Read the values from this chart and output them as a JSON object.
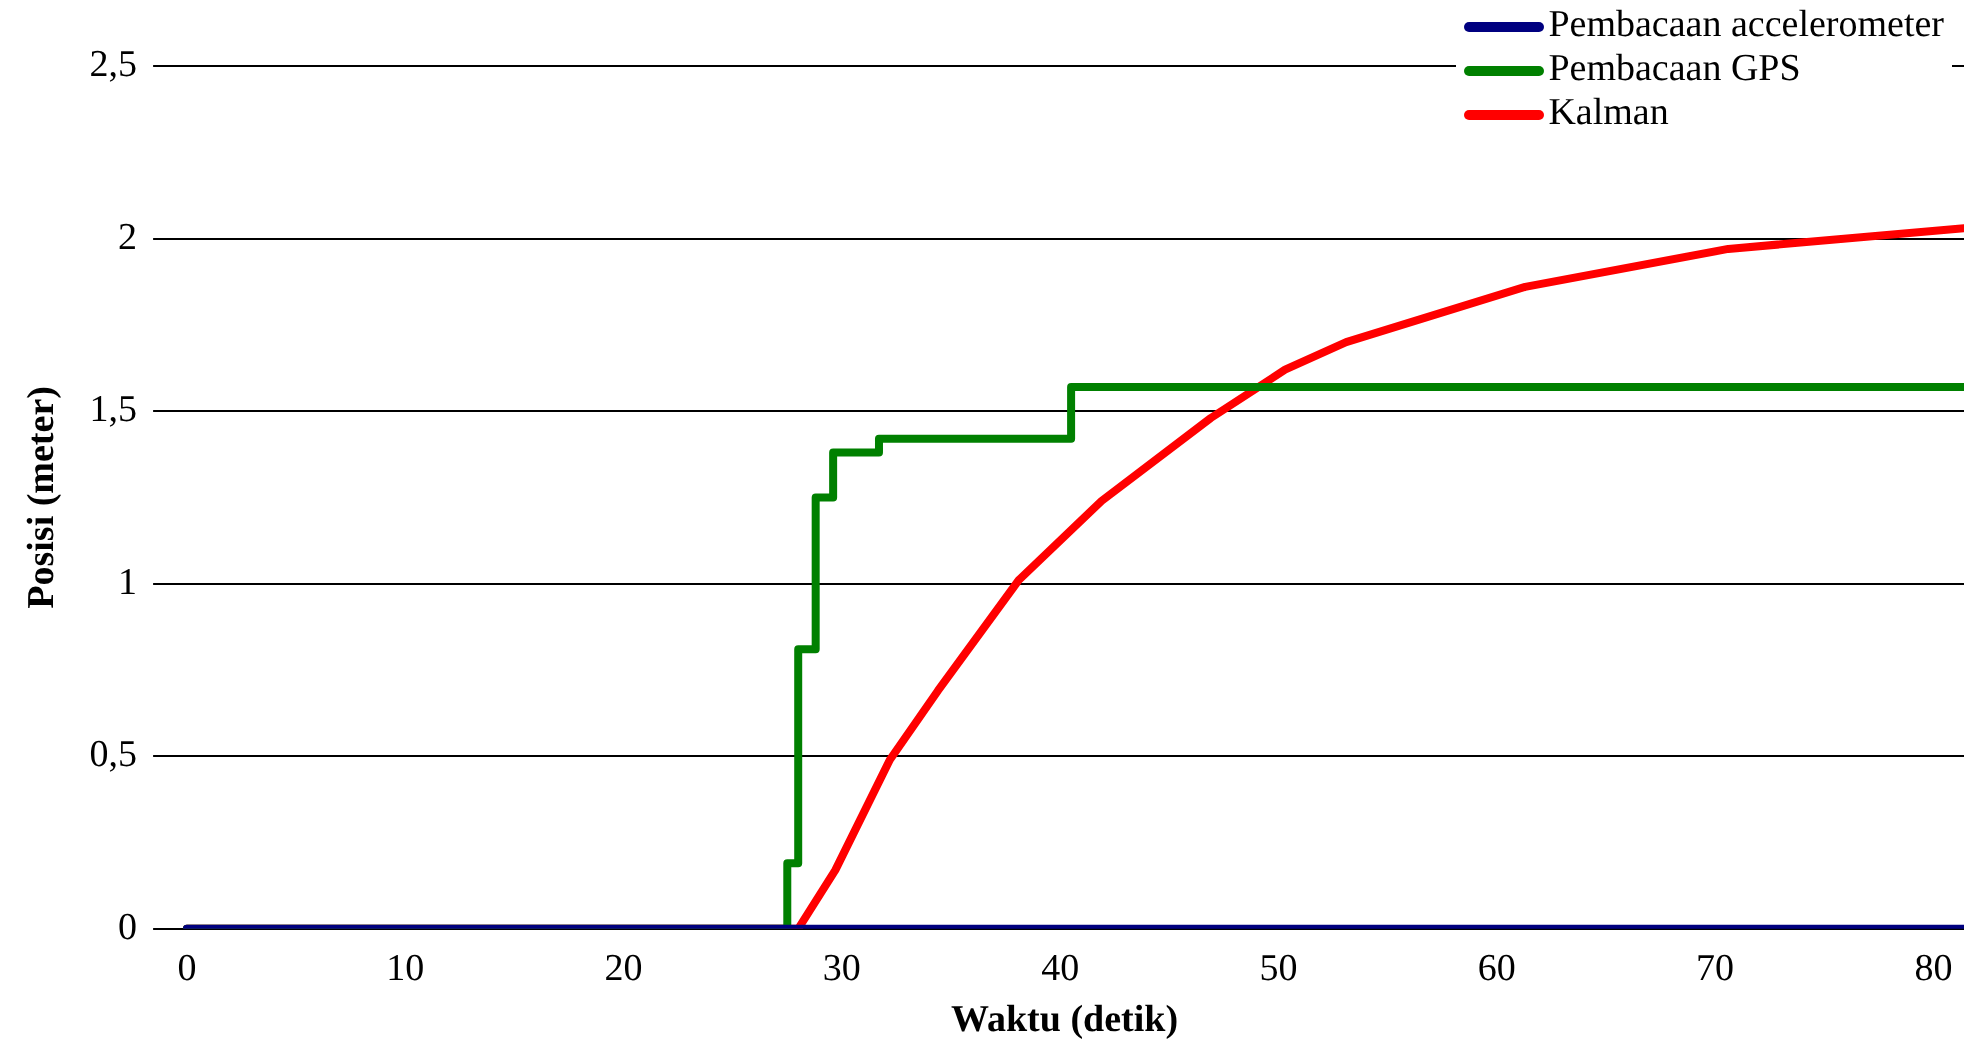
{
  "chart_data": {
    "type": "line",
    "xlabel": "Waktu (detik)",
    "ylabel": "Posisi (meter)",
    "xlim": [
      -1,
      81.4
    ],
    "xticks": [
      0,
      10,
      20,
      30,
      40,
      50,
      60,
      70,
      80
    ],
    "ylim": [
      0,
      2.5
    ],
    "yticks": [
      0,
      {
        "value": 0.5,
        "label": "0,5"
      },
      1,
      {
        "value": 1.5,
        "label": "1,5"
      },
      2,
      {
        "value": 2.5,
        "label": "2,5"
      }
    ],
    "grid": "y",
    "legend": "top right",
    "marker": "none",
    "line_style": "solid",
    "series": [
      {
        "name": "Pembacaan accelerometer",
        "color": "#000080",
        "x": [
          0,
          81.4
        ],
        "values": [
          0,
          0
        ]
      },
      {
        "name": "Pembacaan GPS",
        "color": "#008000",
        "type": "step",
        "x": [
          0,
          27.5,
          28.0,
          28.8,
          29.6,
          31.7,
          40.5,
          81.4
        ],
        "values": [
          0,
          0.19,
          0.81,
          1.25,
          1.38,
          1.42,
          1.57,
          1.57
        ]
      },
      {
        "name": "Kalman",
        "color": "#ff0000",
        "x": [
          0,
          28.0,
          29.7,
          32.2,
          34.4,
          38.1,
          41.9,
          46.9,
          50.3,
          53.1,
          61.3,
          70.6,
          81.4
        ],
        "values": [
          0,
          0,
          0.17,
          0.49,
          0.69,
          1.01,
          1.24,
          1.48,
          1.62,
          1.7,
          1.86,
          1.97,
          2.03
        ]
      }
    ]
  }
}
